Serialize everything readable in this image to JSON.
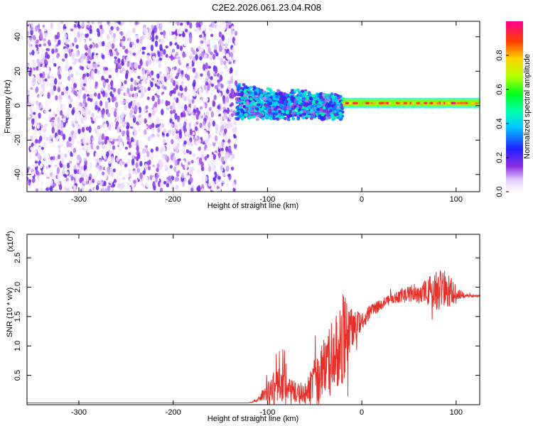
{
  "title": "C2E2.2026.061.23.04.R08",
  "chart_data": [
    {
      "type": "heatmap",
      "name": "spectrogram",
      "xlabel": "Height of straight line (km)",
      "ylabel": "Frequency (Hz)",
      "xlim": [
        -355,
        125
      ],
      "ylim": [
        -50,
        49
      ],
      "xticks": [
        -300,
        -200,
        -100,
        0,
        100
      ],
      "yticks": [
        -40,
        -20,
        0,
        20,
        40
      ],
      "colorbar": {
        "label": "Normalized spectral amplitude",
        "range": [
          0,
          1
        ],
        "ticks": [
          0.0,
          0.2,
          0.4,
          0.6,
          0.8
        ],
        "tick_labels": [
          "0.0",
          "0.2",
          "0.4",
          "0.6",
          "0.8"
        ]
      },
      "regions": [
        {
          "name": "noise",
          "x": [
            -355,
            -133
          ],
          "freq": [
            -50,
            49
          ],
          "amplitude": [
            0.0,
            0.2
          ]
        },
        {
          "name": "transition",
          "x": [
            -133,
            -20
          ],
          "freq": [
            -12,
            10
          ],
          "amplitude": [
            0.1,
            0.5
          ]
        },
        {
          "name": "signal",
          "x": [
            -20,
            125
          ],
          "freq": [
            0,
            3
          ],
          "amplitude": [
            0.6,
            1.0
          ]
        }
      ]
    },
    {
      "type": "line",
      "name": "snr",
      "xlabel": "Height of straight line (km)",
      "ylabel": "SNR (10 * v/v)",
      "multiplier_label": "(x10",
      "multiplier_exponent": "4",
      "multiplier_suffix": ")",
      "xlim": [
        -355,
        125
      ],
      "ylim": [
        0,
        2.9
      ],
      "xticks": [
        -300,
        -200,
        -100,
        0,
        100
      ],
      "yticks": [
        0.5,
        1.0,
        1.5,
        2.0,
        2.5
      ],
      "ytick_labels": [
        "0.5",
        "1.0",
        "1.5",
        "2.0",
        "2.5"
      ],
      "series": [
        {
          "name": "SNR",
          "color": "#e8302a",
          "x": [
            -355,
            -300,
            -200,
            -120,
            -110,
            -100,
            -90,
            -80,
            -70,
            -60,
            -50,
            -40,
            -30,
            -20,
            -10,
            0,
            10,
            20,
            30,
            40,
            50,
            60,
            70,
            80,
            90,
            100,
            110,
            125
          ],
          "values": [
            0.03,
            0.03,
            0.03,
            0.03,
            0.08,
            0.25,
            0.35,
            0.3,
            0.22,
            0.2,
            0.4,
            0.55,
            0.85,
            1.15,
            1.3,
            1.4,
            1.6,
            1.7,
            1.8,
            1.85,
            1.88,
            1.9,
            1.92,
            1.95,
            1.95,
            1.9,
            1.85,
            1.85
          ],
          "noise": [
            0,
            0,
            0,
            0,
            0.05,
            0.3,
            0.5,
            0.4,
            0.3,
            0.3,
            0.6,
            0.9,
            1.1,
            1.4,
            0.5,
            0.3,
            0.2,
            0.15,
            0.15,
            0.2,
            0.25,
            0.3,
            0.4,
            0.6,
            0.6,
            0.2,
            0.05,
            0.03
          ]
        }
      ]
    }
  ]
}
